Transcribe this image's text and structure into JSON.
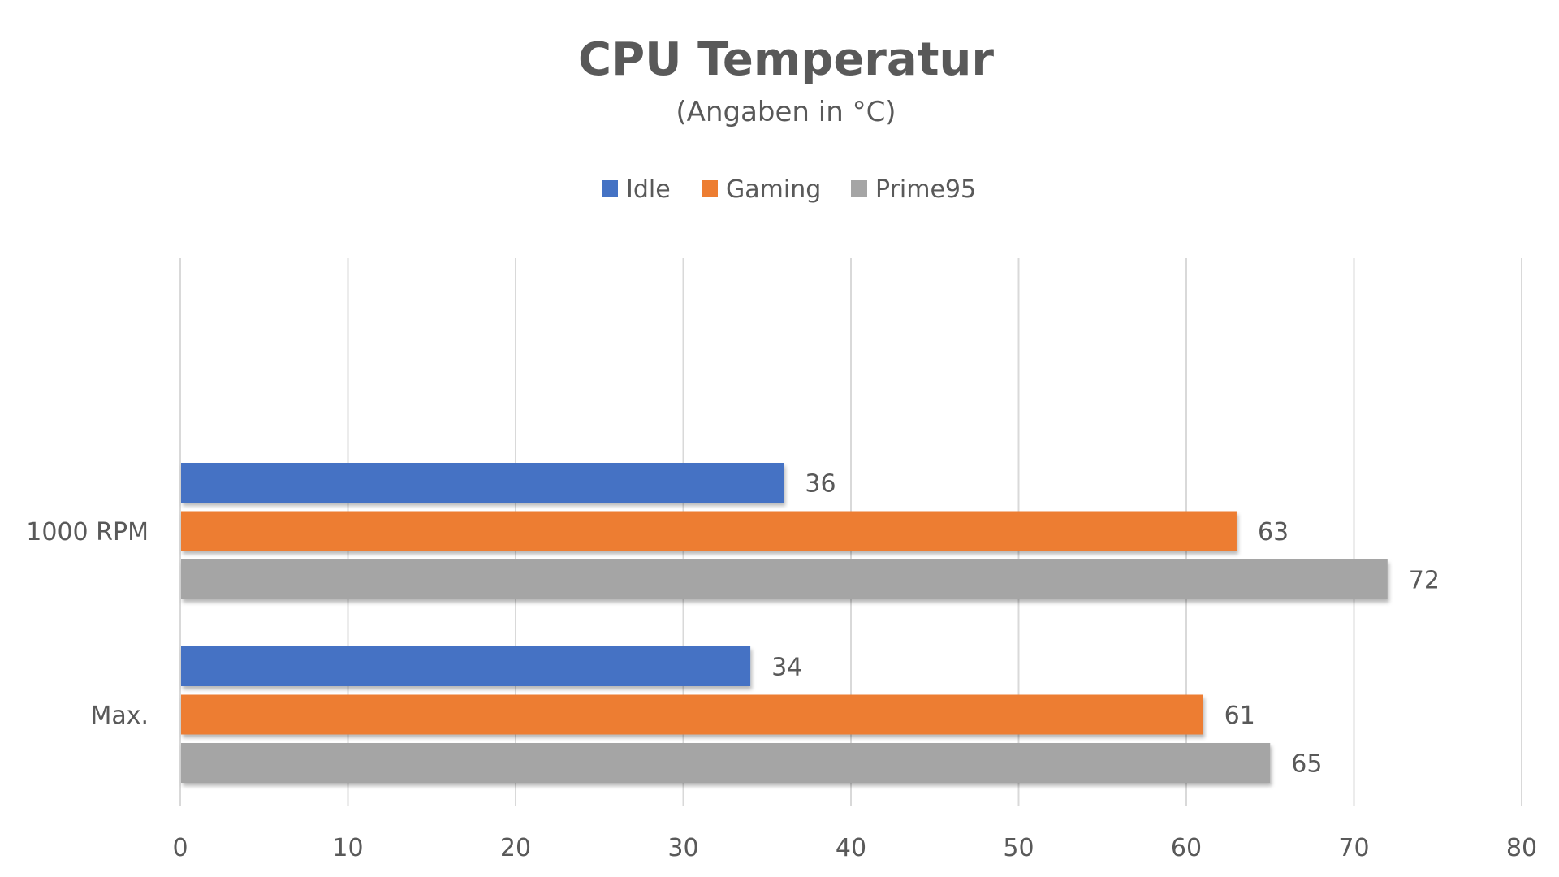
{
  "chart_data": {
    "type": "bar",
    "orientation": "horizontal",
    "title": "CPU Temperatur",
    "subtitle": "(Angaben in °C)",
    "categories": [
      "1000 RPM",
      "Max."
    ],
    "series": [
      {
        "name": "Idle",
        "values": [
          36,
          34
        ],
        "color": "#4472C4"
      },
      {
        "name": "Gaming",
        "values": [
          63,
          61
        ],
        "color": "#ED7D31"
      },
      {
        "name": "Prime95",
        "values": [
          72,
          65
        ],
        "color": "#A5A5A5"
      }
    ],
    "xlim": [
      0,
      80
    ],
    "xticks": [
      0,
      10,
      20,
      30,
      40,
      50,
      60,
      70,
      80
    ],
    "grid": "vertical",
    "legend_position": "top-center",
    "data_labels": true
  }
}
